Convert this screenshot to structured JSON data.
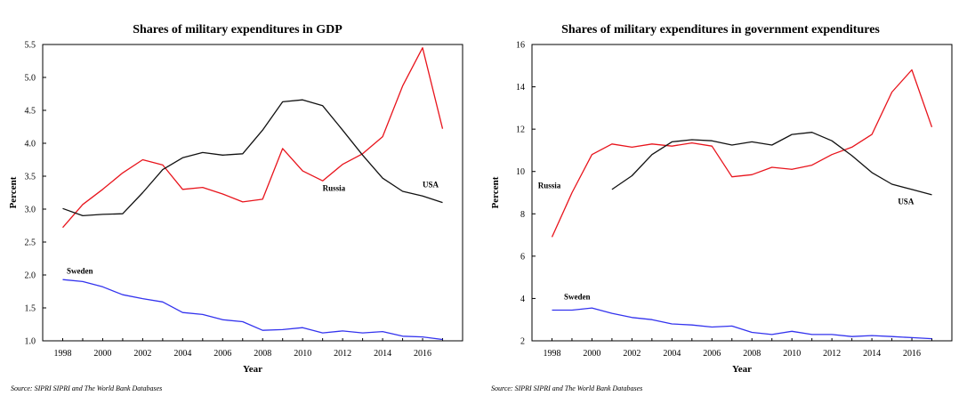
{
  "source_note": "Source: SIPRI SIPRI and The World Bank Databases",
  "chart_data": [
    {
      "type": "line",
      "title": "Shares of military expenditures in GDP",
      "xlabel": "Year",
      "ylabel": "Percent",
      "xlim": [
        1997,
        2018
      ],
      "ylim": [
        1.0,
        5.5
      ],
      "xticks": [
        "1998",
        "2000",
        "2002",
        "2004",
        "2006",
        "2008",
        "2010",
        "2012",
        "2014",
        "2016"
      ],
      "yticks": [
        "1.0",
        "1.5",
        "2.0",
        "2.5",
        "3.0",
        "3.5",
        "4.0",
        "4.5",
        "5.0",
        "5.5"
      ],
      "grid": false,
      "legend": "inline labels",
      "series": [
        {
          "name": "Russia",
          "color": "#e8141c",
          "label_at": [
            2011,
            3.28
          ],
          "x": [
            1998,
            1999,
            2000,
            2001,
            2002,
            2003,
            2004,
            2005,
            2006,
            2007,
            2008,
            2009,
            2010,
            2011,
            2012,
            2013,
            2014,
            2015,
            2016,
            2017
          ],
          "values": [
            2.72,
            3.07,
            3.3,
            3.55,
            3.75,
            3.67,
            3.3,
            3.33,
            3.23,
            3.11,
            3.15,
            3.92,
            3.58,
            3.43,
            3.68,
            3.84,
            4.1,
            4.87,
            5.45,
            4.22
          ]
        },
        {
          "name": "USA",
          "color": "#111111",
          "label_at": [
            2016,
            3.33
          ],
          "x": [
            1998,
            1999,
            2000,
            2001,
            2002,
            2003,
            2004,
            2005,
            2006,
            2007,
            2008,
            2009,
            2010,
            2011,
            2012,
            2013,
            2014,
            2015,
            2016,
            2017
          ],
          "values": [
            3.01,
            2.9,
            2.92,
            2.93,
            3.25,
            3.6,
            3.78,
            3.86,
            3.82,
            3.84,
            4.2,
            4.63,
            4.66,
            4.57,
            4.2,
            3.82,
            3.47,
            3.27,
            3.2,
            3.1
          ]
        },
        {
          "name": "Sweden",
          "color": "#3333ee",
          "label_at": [
            1998.2,
            2.02
          ],
          "x": [
            1998,
            1999,
            2000,
            2001,
            2002,
            2003,
            2004,
            2005,
            2006,
            2007,
            2008,
            2009,
            2010,
            2011,
            2012,
            2013,
            2014,
            2015,
            2016,
            2017
          ],
          "values": [
            1.93,
            1.9,
            1.82,
            1.7,
            1.64,
            1.59,
            1.43,
            1.4,
            1.32,
            1.29,
            1.16,
            1.17,
            1.2,
            1.12,
            1.15,
            1.12,
            1.14,
            1.07,
            1.06,
            1.02
          ]
        }
      ]
    },
    {
      "type": "line",
      "title": "Shares of military expenditures in government expenditures",
      "xlabel": "Year",
      "ylabel": "Percent",
      "xlim": [
        1997,
        2018
      ],
      "ylim": [
        2,
        16
      ],
      "xticks": [
        "1998",
        "2000",
        "2002",
        "2004",
        "2006",
        "2008",
        "2010",
        "2012",
        "2014",
        "2016"
      ],
      "yticks": [
        "2",
        "4",
        "6",
        "8",
        "10",
        "12",
        "14",
        "16"
      ],
      "grid": false,
      "legend": "inline labels",
      "series": [
        {
          "name": "Russia",
          "color": "#e8141c",
          "label_at": [
            1997.3,
            9.2
          ],
          "x": [
            1998,
            1999,
            2000,
            2001,
            2002,
            2003,
            2004,
            2005,
            2006,
            2007,
            2008,
            2009,
            2010,
            2011,
            2012,
            2013,
            2014,
            2015,
            2016,
            2017
          ],
          "values": [
            6.9,
            9.0,
            10.8,
            11.3,
            11.15,
            11.3,
            11.2,
            11.35,
            11.2,
            9.75,
            9.85,
            10.2,
            10.1,
            10.3,
            10.8,
            11.15,
            11.75,
            13.75,
            14.8,
            12.1
          ]
        },
        {
          "name": "USA",
          "color": "#111111",
          "label_at": [
            2015.3,
            8.45
          ],
          "x": [
            2001,
            2002,
            2003,
            2004,
            2005,
            2006,
            2007,
            2008,
            2009,
            2010,
            2011,
            2012,
            2013,
            2014,
            2015,
            2016,
            2017
          ],
          "values": [
            9.15,
            9.8,
            10.8,
            11.4,
            11.5,
            11.45,
            11.25,
            11.4,
            11.25,
            11.75,
            11.85,
            11.45,
            10.75,
            9.95,
            9.4,
            9.15,
            8.9
          ]
        },
        {
          "name": "Sweden",
          "color": "#3333ee",
          "label_at": [
            1998.6,
            3.95
          ],
          "x": [
            1998,
            1999,
            2000,
            2001,
            2002,
            2003,
            2004,
            2005,
            2006,
            2007,
            2008,
            2009,
            2010,
            2011,
            2012,
            2013,
            2014,
            2015,
            2016,
            2017
          ],
          "values": [
            3.45,
            3.45,
            3.55,
            3.3,
            3.1,
            3.0,
            2.8,
            2.75,
            2.65,
            2.7,
            2.4,
            2.3,
            2.45,
            2.3,
            2.3,
            2.2,
            2.25,
            2.2,
            2.15,
            2.1
          ]
        }
      ]
    }
  ]
}
